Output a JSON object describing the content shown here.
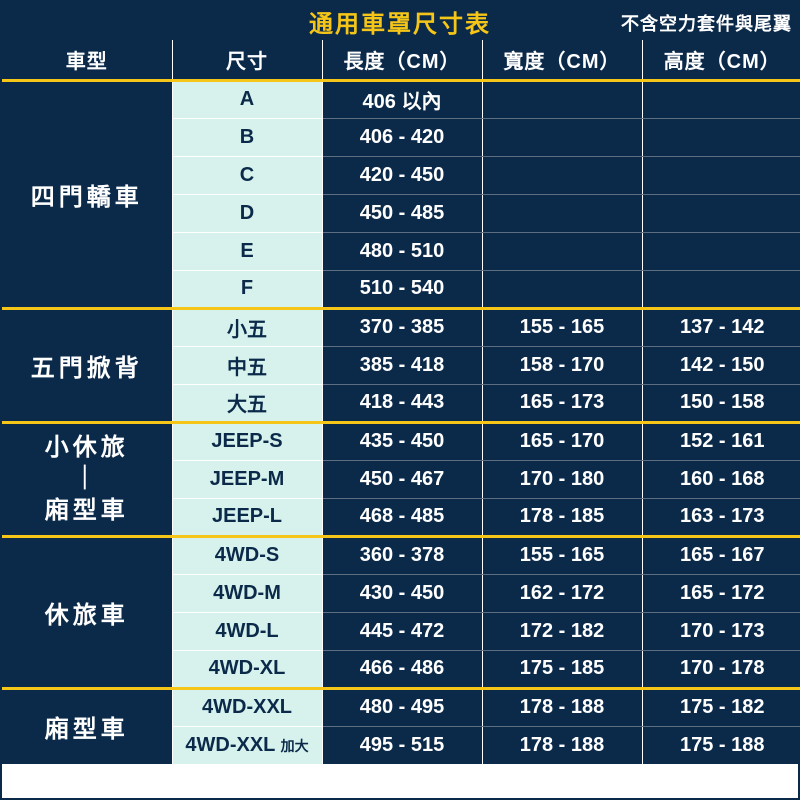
{
  "colors": {
    "primary_bg": "#0b2a4a",
    "accent": "#f5c518",
    "size_bg": "#d7f2ed",
    "text_light": "#ffffff",
    "text_dark": "#0b2a4a",
    "row_divider_dark": "#5c6e80"
  },
  "title": {
    "main": "通用車罩尺寸表",
    "sub": "不含空力套件與尾翼"
  },
  "columns": {
    "type": "車型",
    "size": "尺寸",
    "length": "長度（CM）",
    "width": "寬度（CM）",
    "height": "高度（CM）"
  },
  "groups": [
    {
      "name": "四門轎車",
      "rows": [
        {
          "size": "A",
          "length": "406 以內",
          "width": "",
          "height": ""
        },
        {
          "size": "B",
          "length": "406 - 420",
          "width": "",
          "height": ""
        },
        {
          "size": "C",
          "length": "420 - 450",
          "width": "",
          "height": ""
        },
        {
          "size": "D",
          "length": "450 - 485",
          "width": "",
          "height": ""
        },
        {
          "size": "E",
          "length": "480 - 510",
          "width": "",
          "height": ""
        },
        {
          "size": "F",
          "length": "510 - 540",
          "width": "",
          "height": ""
        }
      ]
    },
    {
      "name": "五門掀背",
      "rows": [
        {
          "size": "小五",
          "length": "370 - 385",
          "width": "155 - 165",
          "height": "137 - 142"
        },
        {
          "size": "中五",
          "length": "385 - 418",
          "width": "158 - 170",
          "height": "142 - 150"
        },
        {
          "size": "大五",
          "length": "418 - 443",
          "width": "165 - 173",
          "height": "150 - 158"
        }
      ]
    },
    {
      "name_lines": [
        "小休旅",
        "｜",
        "廂型車"
      ],
      "rows": [
        {
          "size": "JEEP-S",
          "length": "435 - 450",
          "width": "165 - 170",
          "height": "152 - 161"
        },
        {
          "size": "JEEP-M",
          "length": "450 - 467",
          "width": "170 - 180",
          "height": "160 - 168"
        },
        {
          "size": "JEEP-L",
          "length": "468 - 485",
          "width": "178 - 185",
          "height": "163 - 173"
        }
      ]
    },
    {
      "name": "休旅車",
      "rows": [
        {
          "size": "4WD-S",
          "length": "360 - 378",
          "width": "155 - 165",
          "height": "165 - 167"
        },
        {
          "size": "4WD-M",
          "length": "430 - 450",
          "width": "162 - 172",
          "height": "165 - 172"
        },
        {
          "size": "4WD-L",
          "length": "445 - 472",
          "width": "172 - 182",
          "height": "170 - 173"
        },
        {
          "size": "4WD-XL",
          "length": "466 - 486",
          "width": "175 - 185",
          "height": "170 - 178"
        }
      ]
    },
    {
      "name": "廂型車",
      "rows": [
        {
          "size": "4WD-XXL",
          "length": "480 - 495",
          "width": "178 - 188",
          "height": "175 - 182"
        },
        {
          "size_html": "4WD-XXL <small>加大</small>",
          "length": "495 - 515",
          "width": "178 - 188",
          "height": "175 - 188"
        }
      ]
    }
  ]
}
